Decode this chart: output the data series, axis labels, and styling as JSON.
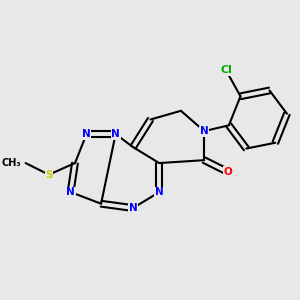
{
  "bg_color": "#e8e8e8",
  "bond_color": "#000000",
  "bond_width": 1.5,
  "atom_colors": {
    "N": "#0000ff",
    "O": "#ff0000",
    "S": "#cccc00",
    "Cl": "#00aa00",
    "C": "#000000"
  },
  "font_size": 7.5,
  "font_size_small": 6.5
}
